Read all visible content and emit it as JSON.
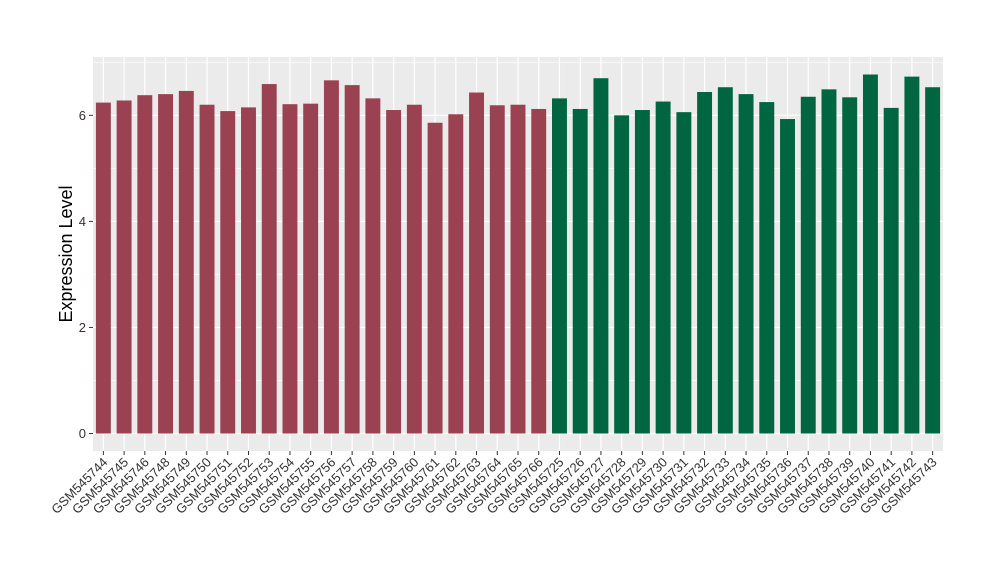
{
  "chart_data": {
    "type": "bar",
    "ylabel": "Expression Level",
    "xlabel": "",
    "ylim": [
      -0.33,
      7.1
    ],
    "yticks": [
      0,
      2,
      4,
      6
    ],
    "grid": true,
    "categories": [
      "GSM545744",
      "GSM545745",
      "GSM545746",
      "GSM545748",
      "GSM545749",
      "GSM545750",
      "GSM545751",
      "GSM545752",
      "GSM545753",
      "GSM545754",
      "GSM545755",
      "GSM545756",
      "GSM545757",
      "GSM545758",
      "GSM545759",
      "GSM545760",
      "GSM545761",
      "GSM545762",
      "GSM545763",
      "GSM545764",
      "GSM545765",
      "GSM545766",
      "GSM545725",
      "GSM545726",
      "GSM545727",
      "GSM545728",
      "GSM545729",
      "GSM545730",
      "GSM545731",
      "GSM545732",
      "GSM545733",
      "GSM545734",
      "GSM545735",
      "GSM545736",
      "GSM545737",
      "GSM545738",
      "GSM545739",
      "GSM545740",
      "GSM545741",
      "GSM545742",
      "GSM545743"
    ],
    "values": [
      6.24,
      6.28,
      6.38,
      6.4,
      6.46,
      6.2,
      6.08,
      6.15,
      6.59,
      6.21,
      6.22,
      6.66,
      6.57,
      6.32,
      6.1,
      6.2,
      5.86,
      6.02,
      6.43,
      6.19,
      6.2,
      6.12,
      6.32,
      6.12,
      6.7,
      6.0,
      6.1,
      6.26,
      6.06,
      6.44,
      6.53,
      6.4,
      6.25,
      5.93,
      6.35,
      6.49,
      6.34,
      6.77,
      6.14,
      6.73,
      6.53
    ],
    "series_colors": [
      "#9b4252",
      "#006641"
    ],
    "series_sizes": [
      22,
      19
    ],
    "background": "#ebebeb",
    "grid_color": "#ffffff"
  }
}
